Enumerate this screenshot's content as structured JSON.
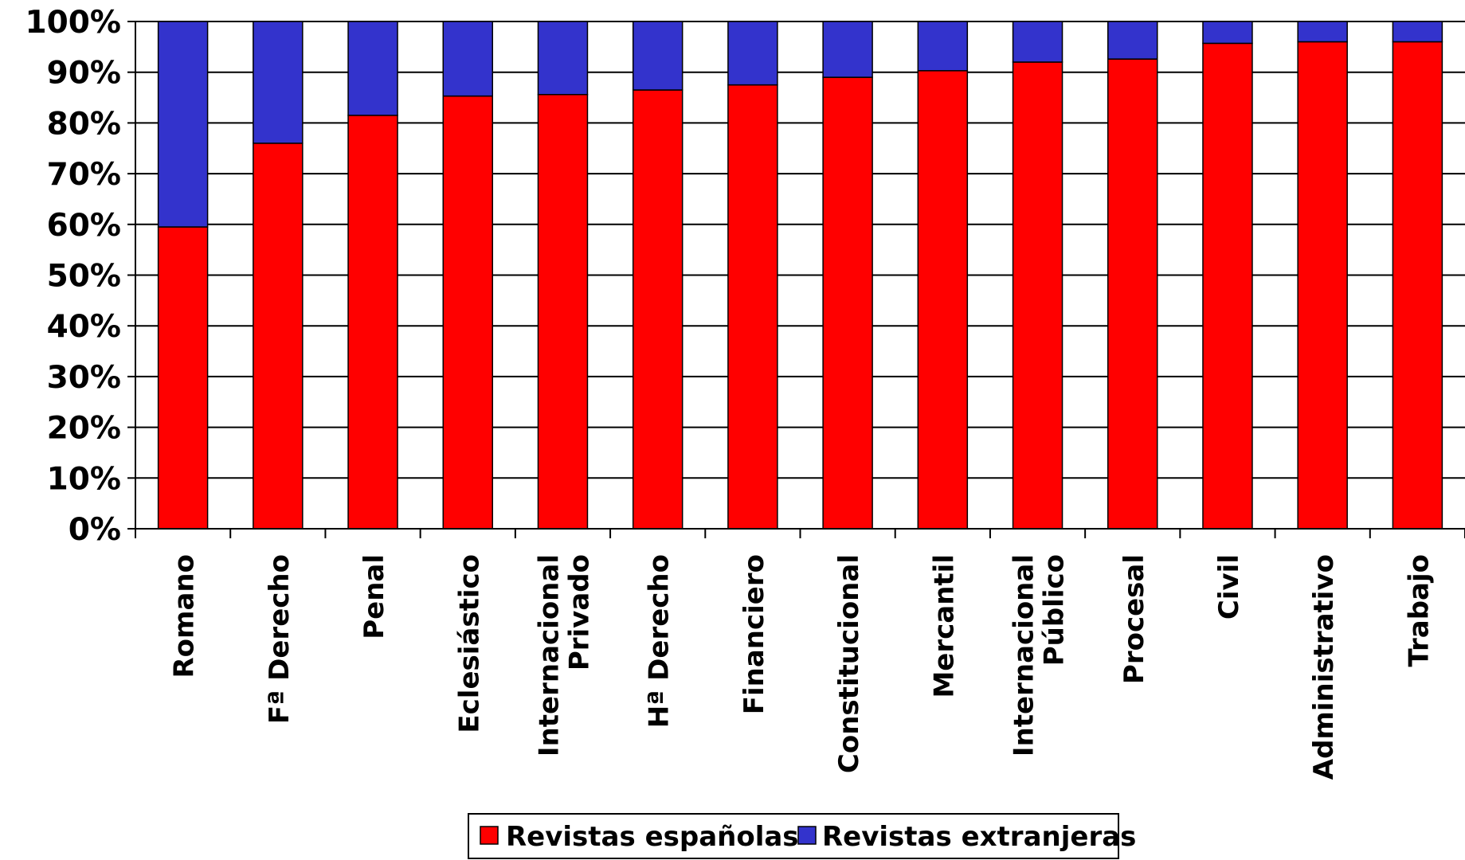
{
  "chart_data": {
    "type": "bar",
    "stacked": true,
    "percent_stacked": true,
    "title": "",
    "xlabel": "",
    "ylabel": "",
    "ylim": [
      0,
      100
    ],
    "y_ticks": [
      "0%",
      "10%",
      "20%",
      "30%",
      "40%",
      "50%",
      "60%",
      "70%",
      "80%",
      "90%",
      "100%"
    ],
    "grid": "horizontal",
    "legend_position": "bottom",
    "categories": [
      [
        "Romano"
      ],
      [
        "Fª Derecho"
      ],
      [
        "Penal"
      ],
      [
        "Eclesiástico"
      ],
      [
        "Internacional",
        "Privado"
      ],
      [
        "Hª Derecho"
      ],
      [
        "Financiero"
      ],
      [
        "Constitucional"
      ],
      [
        "Mercantil"
      ],
      [
        "Internacional",
        "Público"
      ],
      [
        "Procesal"
      ],
      [
        "Civil"
      ],
      [
        "Administrativo"
      ],
      [
        "Trabajo"
      ]
    ],
    "series": [
      {
        "name": "Revistas españolas",
        "color": "#ff0000",
        "values": [
          59.5,
          76,
          81.5,
          85.3,
          85.6,
          86.5,
          87.5,
          89,
          90.3,
          92,
          92.6,
          95.7,
          96,
          96
        ]
      },
      {
        "name": "Revistas extranjeras",
        "color": "#3333cc",
        "values": [
          40.5,
          24,
          18.5,
          14.7,
          14.4,
          13.5,
          12.5,
          11,
          9.7,
          8,
          7.4,
          4.3,
          4,
          4
        ]
      }
    ]
  }
}
